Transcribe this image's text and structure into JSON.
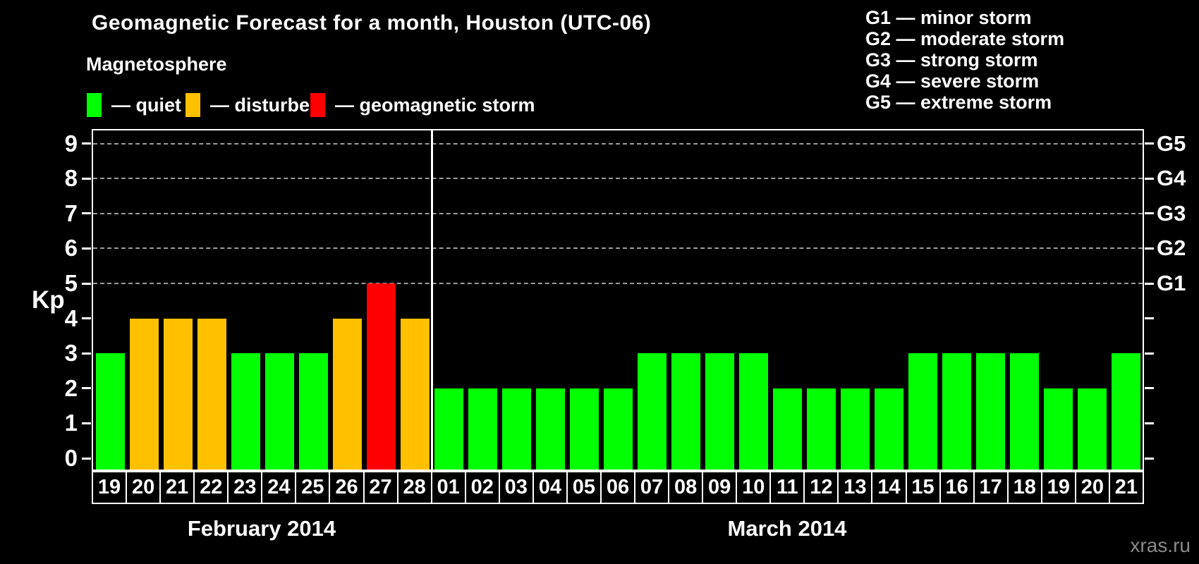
{
  "title": "Geomagnetic Forecast for a month, Houston (UTC-06)",
  "legend": {
    "title": "Magnetosphere",
    "items": [
      {
        "label": "— quiet",
        "status": "quiet",
        "color": "#00ff00"
      },
      {
        "label": "— disturbed",
        "status": "disturbed",
        "color": "#ffc000"
      },
      {
        "label": "— geomagnetic storm",
        "status": "storm",
        "color": "#ff0000"
      }
    ]
  },
  "g_legend": [
    "G1 — minor storm",
    "G2 — moderate storm",
    "G3 — strong storm",
    "G4 — severe storm",
    "G5 — extreme storm"
  ],
  "watermark": "xras.ru",
  "chart_data": {
    "type": "bar",
    "title": "Geomagnetic Forecast for a month, Houston (UTC-06)",
    "ylabel": "Kp",
    "ylim": [
      0,
      9
    ],
    "yticks": [
      0,
      1,
      2,
      3,
      4,
      5,
      6,
      7,
      8,
      9
    ],
    "gridlines_at": [
      5,
      6,
      7,
      8,
      9
    ],
    "grid": "dashed horizontal at G-storm levels only",
    "legend_position": "top",
    "right_axis": [
      {
        "kp": 5,
        "label": "G1"
      },
      {
        "kp": 6,
        "label": "G2"
      },
      {
        "kp": 7,
        "label": "G3"
      },
      {
        "kp": 8,
        "label": "G4"
      },
      {
        "kp": 9,
        "label": "G5"
      }
    ],
    "status_colors": {
      "quiet": "#00ff00",
      "disturbed": "#ffc000",
      "storm": "#ff0000"
    },
    "months": [
      {
        "label": "February 2014",
        "days": [
          "19",
          "20",
          "21",
          "22",
          "23",
          "24",
          "25",
          "26",
          "27",
          "28"
        ],
        "values": [
          3,
          4,
          4,
          4,
          3,
          3,
          3,
          4,
          5,
          4
        ],
        "status": [
          "quiet",
          "disturbed",
          "disturbed",
          "disturbed",
          "quiet",
          "quiet",
          "quiet",
          "disturbed",
          "storm",
          "disturbed"
        ]
      },
      {
        "label": "March 2014",
        "days": [
          "01",
          "02",
          "03",
          "04",
          "05",
          "06",
          "07",
          "08",
          "09",
          "10",
          "11",
          "12",
          "13",
          "14",
          "15",
          "16",
          "17",
          "18",
          "19",
          "20",
          "21"
        ],
        "values": [
          2,
          2,
          2,
          2,
          2,
          2,
          3,
          3,
          3,
          3,
          2,
          2,
          2,
          2,
          3,
          3,
          3,
          3,
          2,
          2,
          3
        ],
        "status": [
          "quiet",
          "quiet",
          "quiet",
          "quiet",
          "quiet",
          "quiet",
          "quiet",
          "quiet",
          "quiet",
          "quiet",
          "quiet",
          "quiet",
          "quiet",
          "quiet",
          "quiet",
          "quiet",
          "quiet",
          "quiet",
          "quiet",
          "quiet",
          "quiet"
        ]
      }
    ]
  }
}
